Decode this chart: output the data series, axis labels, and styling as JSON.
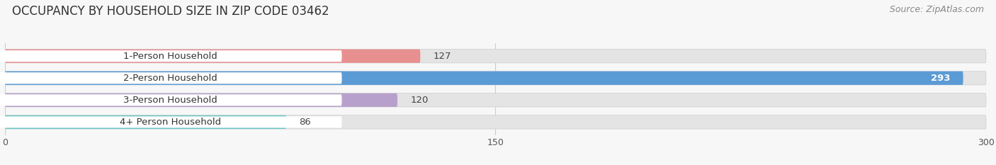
{
  "title": "OCCUPANCY BY HOUSEHOLD SIZE IN ZIP CODE 03462",
  "source": "Source: ZipAtlas.com",
  "categories": [
    "1-Person Household",
    "2-Person Household",
    "3-Person Household",
    "4+ Person Household"
  ],
  "values": [
    127,
    293,
    120,
    86
  ],
  "bar_colors": [
    "#e89090",
    "#5b9bd5",
    "#b8a0cc",
    "#6cc5c5"
  ],
  "bar_bg_color": "#e4e4e4",
  "xlim": [
    0,
    300
  ],
  "xticks": [
    0,
    150,
    300
  ],
  "title_fontsize": 12,
  "source_fontsize": 9,
  "label_fontsize": 9.5,
  "value_fontsize": 9.5,
  "background_color": "#f7f7f7"
}
